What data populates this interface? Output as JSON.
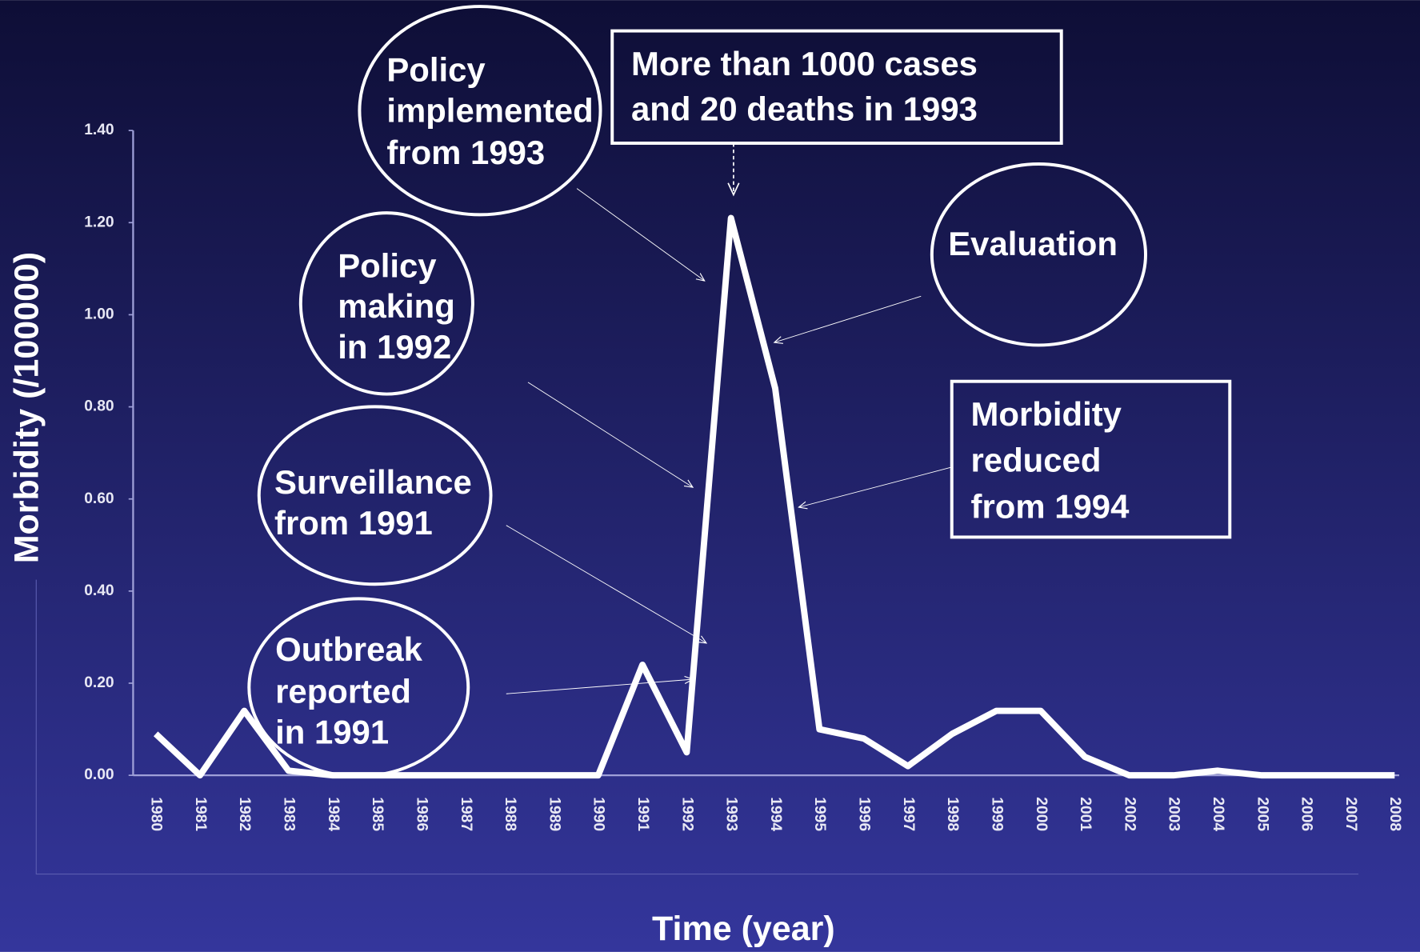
{
  "chart_data": {
    "type": "line",
    "xlabel": "Time (year)",
    "ylabel": "Morbidity (/100000)",
    "categories": [
      "1980",
      "1981",
      "1982",
      "1983",
      "1984",
      "1985",
      "1986",
      "1987",
      "1988",
      "1989",
      "1990",
      "1991",
      "1992",
      "1993",
      "1994",
      "1995",
      "1996",
      "1997",
      "1998",
      "1999",
      "2000",
      "2001",
      "2002",
      "2003",
      "2004",
      "2005",
      "2006",
      "2007",
      "2008"
    ],
    "series": [
      {
        "name": "Morbidity",
        "color": "#ffffff",
        "values": [
          0.09,
          0.0,
          0.14,
          0.01,
          0.0,
          0.0,
          0.0,
          0.0,
          0.0,
          0.0,
          0.0,
          0.24,
          0.05,
          1.21,
          0.84,
          0.1,
          0.08,
          0.02,
          0.09,
          0.14,
          0.14,
          0.04,
          0.0,
          0.0,
          0.01,
          0.0,
          0.0,
          0.0,
          0.0
        ]
      }
    ],
    "ylim": [
      0,
      1.4
    ],
    "yticks": [
      {
        "value": 0,
        "label": "0.00"
      },
      {
        "value": 0.2,
        "label": "0.20"
      },
      {
        "value": 0.4,
        "label": "0.40"
      },
      {
        "value": 0.6,
        "label": "0.60"
      },
      {
        "value": 0.8,
        "label": "0.80"
      },
      {
        "value": 1.0,
        "label": "1.00"
      },
      {
        "value": 1.2,
        "label": "1.20"
      },
      {
        "value": 1.4,
        "label": "1.40"
      }
    ],
    "grid": false,
    "annotations": [
      {
        "lines": [
          "Policy",
          "implemented",
          "from 1993"
        ]
      },
      {
        "lines": [
          "More than 1000 cases",
          "and  20 deaths in 1993"
        ]
      },
      {
        "lines": [
          "Evaluation"
        ]
      },
      {
        "lines": [
          "Policy",
          "making",
          "in 1992"
        ]
      },
      {
        "lines": [
          "Morbidity",
          "reduced",
          "from 1994"
        ]
      },
      {
        "lines": [
          "Surveillance",
          "from 1991"
        ]
      },
      {
        "lines": [
          "Outbreak",
          "reported",
          "in 1991"
        ]
      }
    ]
  }
}
